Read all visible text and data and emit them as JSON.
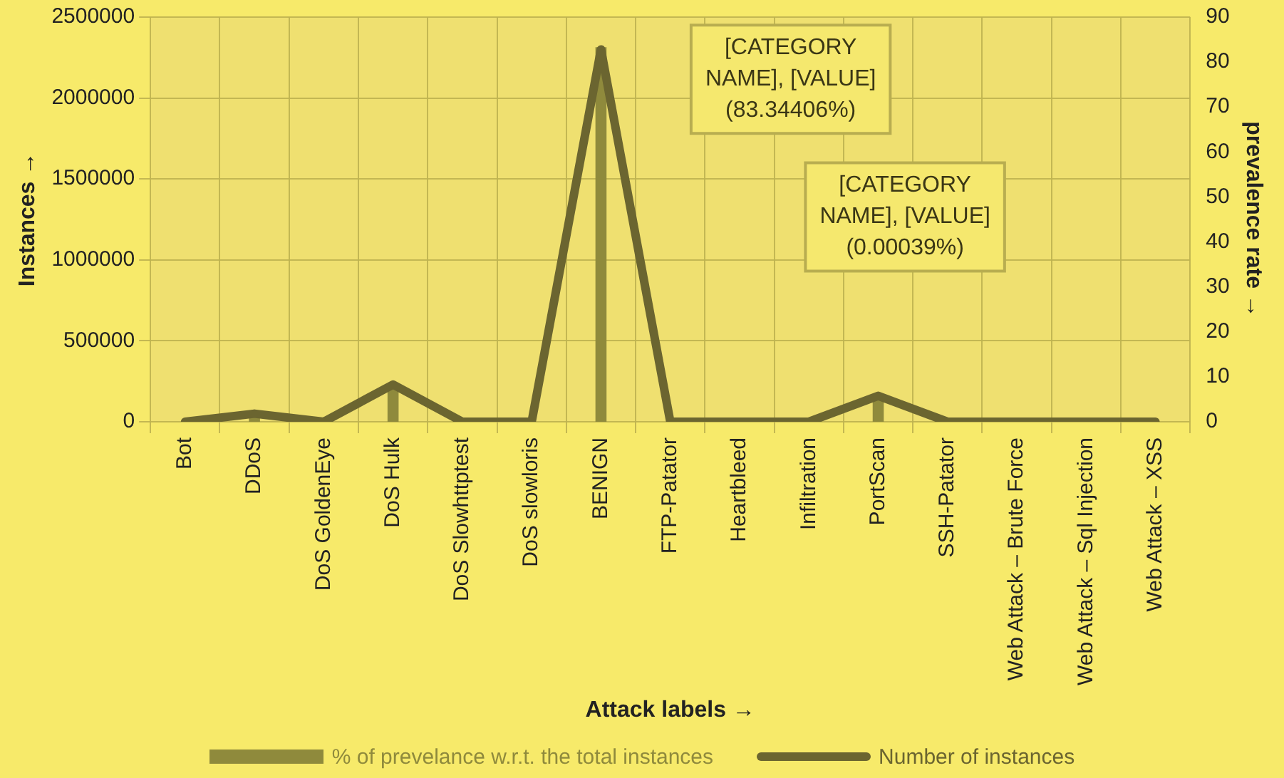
{
  "chart_data": {
    "type": "bar",
    "categories": [
      "Bot",
      "DDoS",
      "DoS GoldenEye",
      "DoS Hulk",
      "DoS Slowhttptest",
      "DoS slowloris",
      "BENIGN",
      "FTP-Patator",
      "Heartbleed",
      "Infiltration",
      "PortScan",
      "SSH-Patator",
      "Web Attack – Brute Force",
      "Web Attack – Sql Injection",
      "Web Attack – XSS"
    ],
    "series": [
      {
        "name": "% of prevelance w.r.t. the total instances",
        "axis": "y2",
        "color": "#8f8a3c",
        "values": [
          0,
          1.5,
          0,
          8.3,
          0,
          0,
          83.3,
          0,
          0,
          0,
          5.8,
          0,
          0,
          0,
          0
        ]
      },
      {
        "name": "Number of instances",
        "type": "line",
        "color": "#6b6530",
        "values": [
          0,
          50000,
          0,
          230000,
          0,
          0,
          2300000,
          0,
          0,
          0,
          160000,
          0,
          0,
          0,
          0
        ]
      }
    ],
    "xlabel": "Attack labels →",
    "ylabel": "Instances →",
    "y2label": "prevalence rate →",
    "ylim": [
      0,
      2500000
    ],
    "yticks": [
      0,
      500000,
      1000000,
      1500000,
      2000000,
      2500000
    ],
    "y2lim": [
      0,
      90
    ],
    "y2ticks": [
      0,
      10,
      20,
      30,
      40,
      50,
      60,
      70,
      80,
      90
    ],
    "annotations": [
      "[CATEGORY NAME], [VALUE] (83.34406%)",
      "[CATEGORY NAME], [VALUE] (0.00039%)"
    ],
    "grid": true,
    "legend": "bottom",
    "marker": "none"
  }
}
